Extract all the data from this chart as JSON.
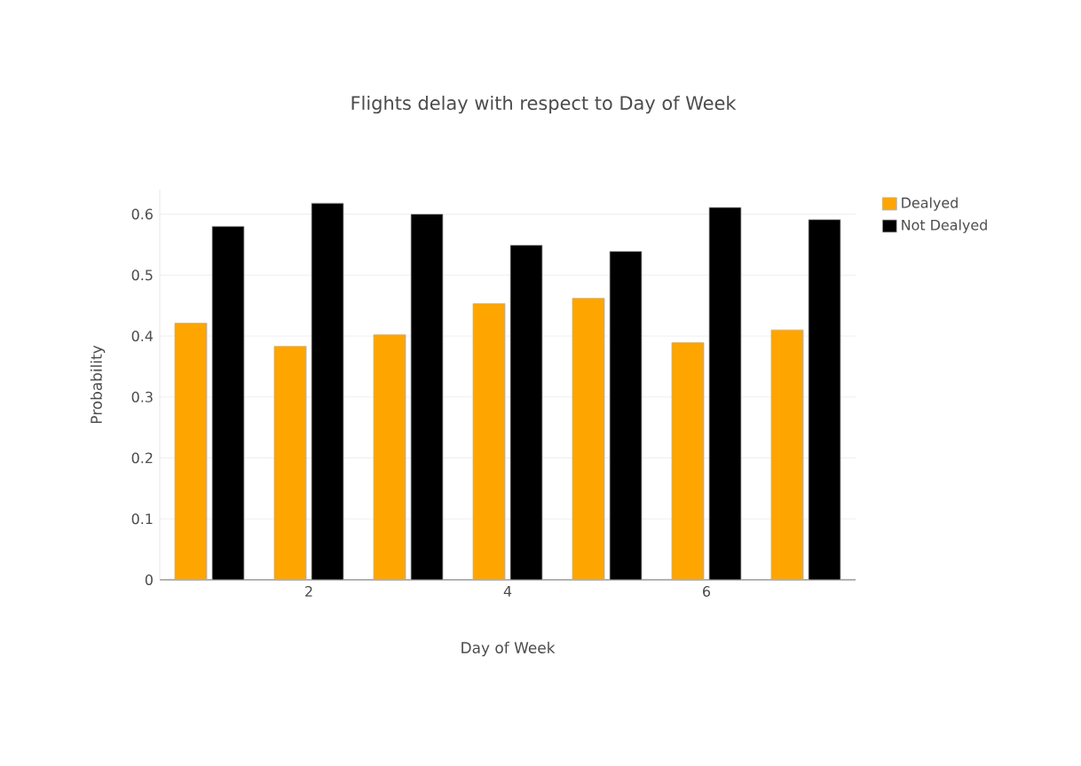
{
  "chart_data": {
    "type": "bar",
    "title": "Flights delay with respect to Day of Week",
    "xlabel": "Day of Week",
    "ylabel": "Probability",
    "x": [
      1,
      2,
      3,
      4,
      5,
      6,
      7
    ],
    "series": [
      {
        "name": "Dealyed",
        "color": "#ffa500",
        "values": [
          0.421,
          0.383,
          0.402,
          0.453,
          0.462,
          0.389,
          0.41
        ]
      },
      {
        "name": "Not Dealyed",
        "color": "#000000",
        "values": [
          0.58,
          0.618,
          0.6,
          0.549,
          0.539,
          0.611,
          0.591
        ]
      }
    ],
    "xlim": [
      0.5,
      7.5
    ],
    "ylim": [
      0,
      0.64
    ],
    "xticks": [
      2,
      4,
      6
    ],
    "yticks": [
      0,
      0.1,
      0.2,
      0.3,
      0.4,
      0.5,
      0.6
    ],
    "grid": "y",
    "legend": "top right"
  }
}
